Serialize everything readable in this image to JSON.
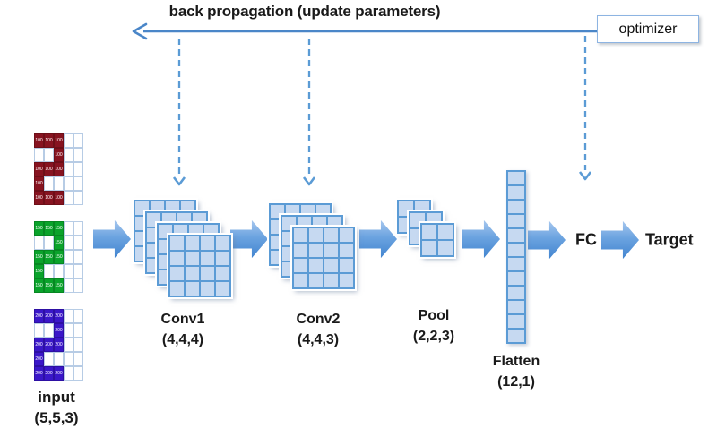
{
  "backprop": {
    "label": "back propagation (update parameters)"
  },
  "optimizer": {
    "label": "optimizer"
  },
  "input": {
    "label": "input",
    "shape_label": "(5,5,3)",
    "grid_rows": 5,
    "grid_cols": 5,
    "pattern": [
      [
        1,
        1,
        1,
        0,
        0
      ],
      [
        0,
        0,
        1,
        0,
        0
      ],
      [
        1,
        1,
        1,
        0,
        0
      ],
      [
        1,
        0,
        0,
        0,
        0
      ],
      [
        1,
        1,
        1,
        0,
        0
      ]
    ],
    "channels": [
      {
        "name": "red-channel",
        "value": "100",
        "fill": "#871320",
        "cell_border": "#6d0f18",
        "text_color": "#ffffff"
      },
      {
        "name": "green-channel",
        "value": "150",
        "fill": "#0aa32b",
        "cell_border": "#078722",
        "text_color": "#ffffff"
      },
      {
        "name": "blue-channel",
        "value": "200",
        "fill": "#3a17c9",
        "cell_border": "#2d10a3",
        "text_color": "#ffffff"
      }
    ]
  },
  "stages": {
    "conv1": {
      "label": "Conv1",
      "shape_label": "(4,4,4)",
      "stack": 4,
      "grid": 4
    },
    "conv2": {
      "label": "Conv2",
      "shape_label": "(4,4,3)",
      "stack": 3,
      "grid": 4
    },
    "pool": {
      "label": "Pool",
      "shape_label": "(2,2,3)",
      "stack": 3,
      "grid": 2
    },
    "flatten": {
      "label": "Flatten",
      "shape_label": "(12,1)",
      "rows": 12
    },
    "fc": {
      "label": "FC"
    },
    "target": {
      "label": "Target"
    }
  },
  "colors": {
    "solid_arrow_line": "#4a86c8",
    "dashed_arrow_line": "#5b9bd5",
    "block_arrow_top": "#a9c9ef",
    "block_arrow_bottom": "#4184cf",
    "cell_fill": "#c6d9f1",
    "cell_border": "#5b9bd5",
    "input_grid_line": "#b7cce5",
    "optimizer_border": "#8db4e2"
  }
}
